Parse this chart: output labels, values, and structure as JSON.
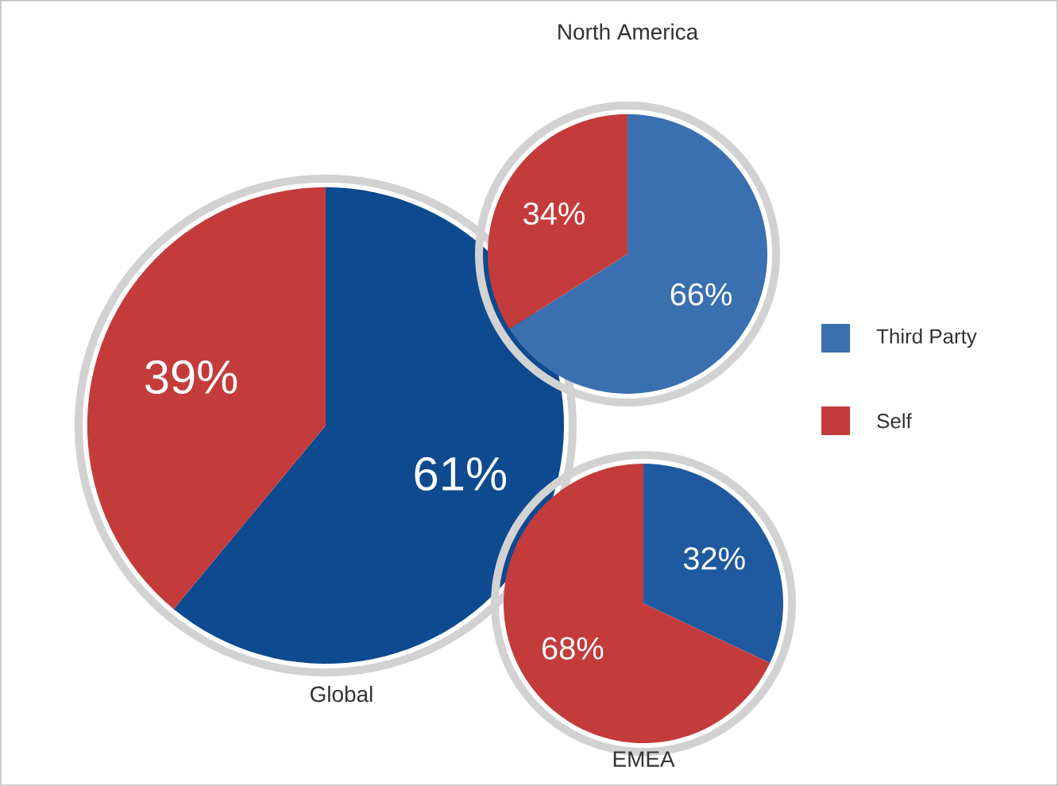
{
  "chart_data": [
    {
      "type": "pie",
      "title": "Global",
      "categories": [
        null,
        null
      ],
      "values": [
        61,
        39
      ],
      "value_labels": [
        "61%",
        "39%"
      ],
      "colors": [
        "#0d4a8f",
        "#c43b3b"
      ]
    },
    {
      "type": "pie",
      "title": "North America",
      "categories": [
        "Third Party",
        "Self"
      ],
      "values": [
        66,
        34
      ],
      "value_labels": [
        "66%",
        "34%"
      ],
      "colors": [
        "#3a6fb0",
        "#c43b3b"
      ],
      "legend": "right"
    },
    {
      "type": "pie",
      "title": "EMEA",
      "categories": [
        null,
        null
      ],
      "values": [
        32,
        68
      ],
      "value_labels": [
        "32%",
        "68%"
      ],
      "colors": [
        "#1f5aa0",
        "#c43b3b"
      ]
    }
  ]
}
